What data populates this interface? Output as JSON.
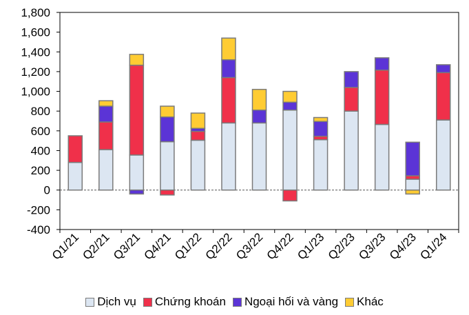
{
  "chart_data": {
    "type": "bar",
    "stacked": true,
    "categories": [
      "Q1/21",
      "Q2/21",
      "Q3/21",
      "Q4/21",
      "Q1/22",
      "Q2/22",
      "Q3/22",
      "Q4/22",
      "Q1/23",
      "Q2/23",
      "Q3/23",
      "Q4/23",
      "Q1/24"
    ],
    "series": [
      {
        "name": "Dịch vụ",
        "color": "#dce6f2",
        "values": [
          280,
          410,
          355,
          490,
          505,
          680,
          680,
          810,
          510,
          800,
          665,
          110,
          710
        ]
      },
      {
        "name": "Chứng khoán",
        "color": "#f0304a",
        "values": [
          270,
          280,
          910,
          -50,
          90,
          460,
          0,
          -110,
          35,
          240,
          550,
          35,
          480
        ]
      },
      {
        "name": "Ngoại hối và vàng",
        "color": "#5b34d6",
        "values": [
          0,
          160,
          -40,
          250,
          30,
          180,
          130,
          80,
          150,
          160,
          125,
          340,
          80
        ]
      },
      {
        "name": "Khác",
        "color": "#ffcc33",
        "values": [
          0,
          55,
          110,
          110,
          155,
          220,
          210,
          110,
          40,
          0,
          0,
          -40,
          0
        ]
      }
    ],
    "yticks": [
      "1,800",
      "1,600",
      "1,400",
      "1,200",
      "1,000",
      "800",
      "600",
      "400",
      "200",
      "0",
      "-200",
      "-400"
    ],
    "ylim": [
      -400,
      1800
    ],
    "legend_position": "bottom",
    "grid": false
  }
}
